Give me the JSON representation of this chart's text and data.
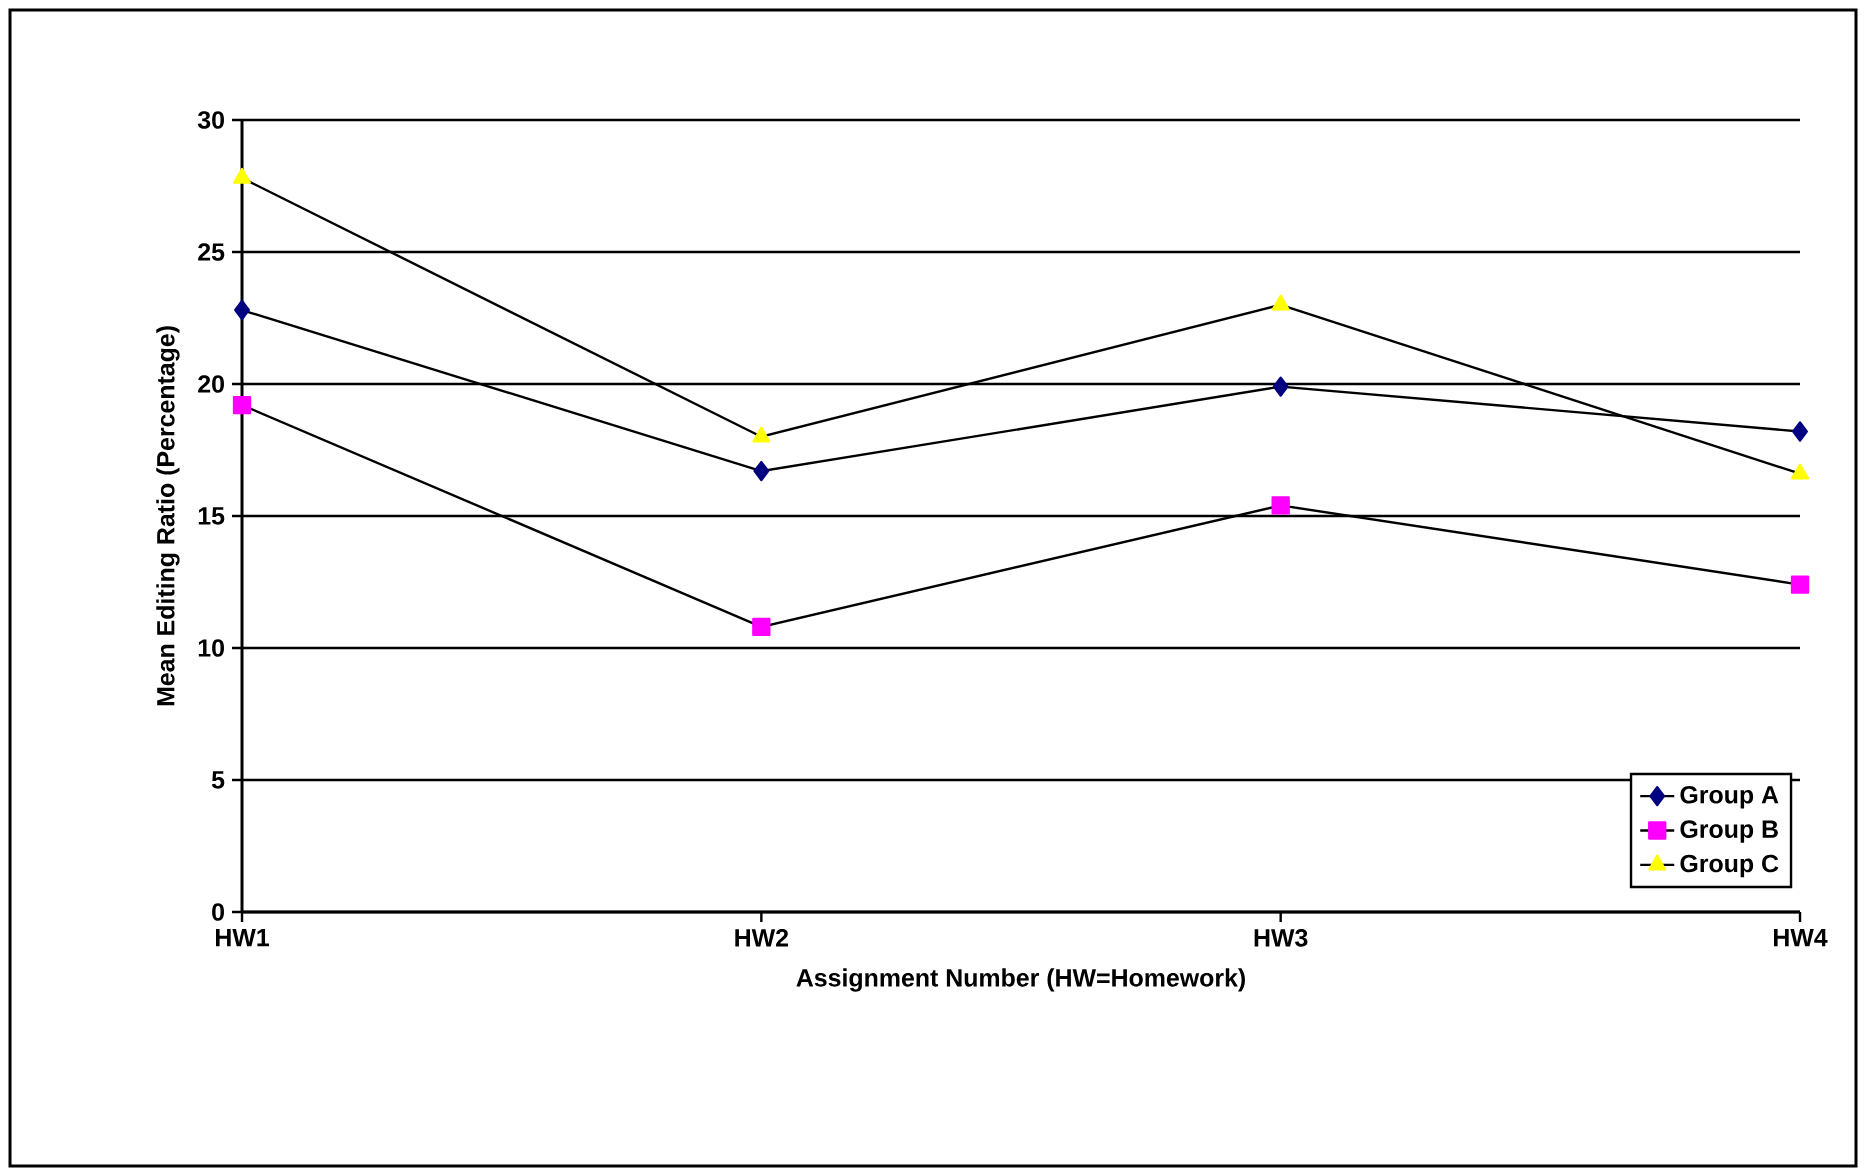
{
  "chart_data": {
    "type": "line",
    "xlabel": "Assignment Number  (HW=Homework)",
    "ylabel": "Mean Editing Ratio (Percentage)",
    "categories": [
      "HW1",
      "HW2",
      "HW3",
      "HW4"
    ],
    "series": [
      {
        "name": "Group A",
        "color": "#000080",
        "marker": "diamond",
        "values": [
          22.8,
          16.7,
          19.9,
          18.2
        ]
      },
      {
        "name": "Group B",
        "color": "#ff00ff",
        "marker": "square",
        "values": [
          19.2,
          10.8,
          15.4,
          12.4
        ]
      },
      {
        "name": "Group C",
        "color": "#ffff00",
        "marker": "triangle",
        "values": [
          27.8,
          18.0,
          23.0,
          16.6
        ]
      }
    ],
    "ylim": [
      0,
      30
    ],
    "yticks": [
      0,
      5,
      10,
      15,
      20,
      25,
      30
    ],
    "grid": "y",
    "legend": "bottom right"
  }
}
